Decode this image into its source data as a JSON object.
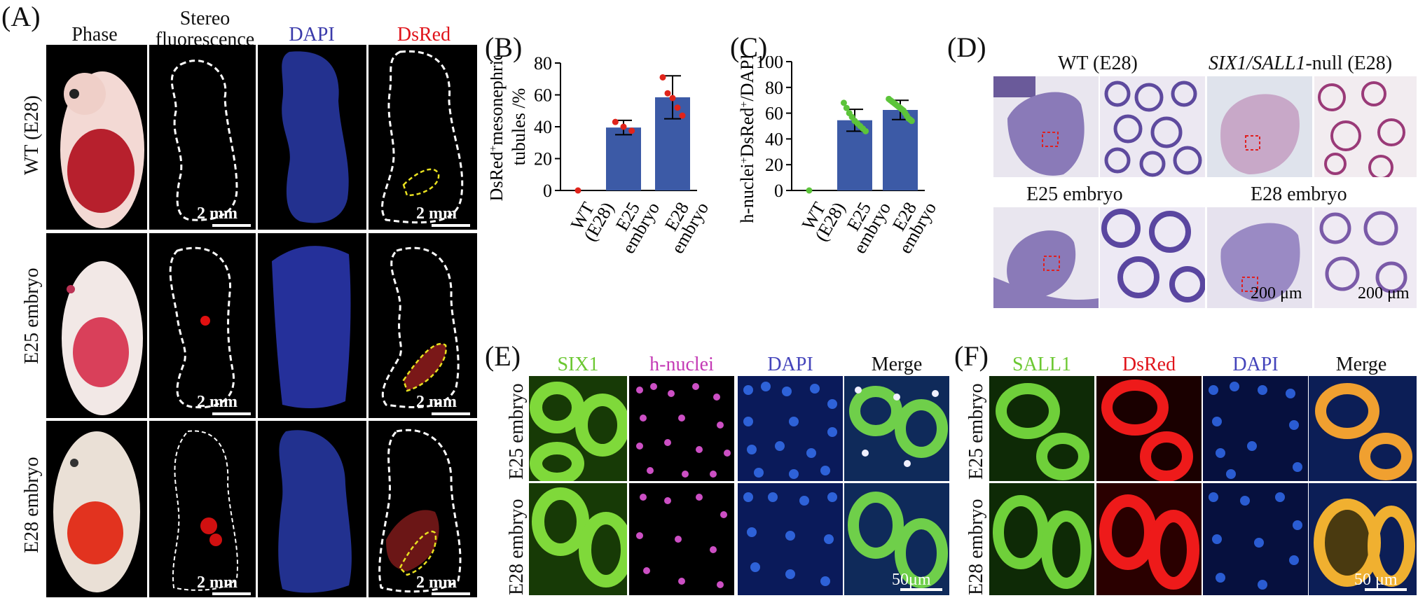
{
  "panel_labels": {
    "A": "(A)",
    "B": "(B)",
    "C": "(C)",
    "D": "(D)",
    "E": "(E)",
    "F": "(F)"
  },
  "panelA": {
    "columns": [
      "Phase",
      "Stereo\nfluorescence",
      "DAPI",
      "DsRed"
    ],
    "rows": [
      "WT (E28)",
      "E25 embryo",
      "E28 embryo"
    ],
    "scale": "2 mm",
    "colors": {
      "dapi": "#3a3aaa",
      "dsred": "#e0141b"
    }
  },
  "panelD": {
    "top_left_title": "WT (E28)",
    "top_right_title_italic": "SIX1/SALL1",
    "top_right_title_rest": "-null (E28)",
    "bottom_left_title": "E25 embryo",
    "bottom_right_title": "E28 embryo",
    "scale_left": "200 μm",
    "scale_right": "200 μm"
  },
  "panelE": {
    "columns": [
      "SIX1",
      "h-nuclei",
      "DAPI",
      "Merge"
    ],
    "col_colors": [
      "#6cc832",
      "#c43ab5",
      "#4444bb",
      "#111111"
    ],
    "rows": [
      "E25 embryo",
      "E28 embryo"
    ],
    "scale": "50μm"
  },
  "panelF": {
    "columns": [
      "SALL1",
      "DsRed",
      "DAPI",
      "Merge"
    ],
    "col_colors": [
      "#6cc832",
      "#e0141b",
      "#4444bb",
      "#111111"
    ],
    "rows": [
      "E25 embryo",
      "E28 embryo"
    ],
    "scale": "50 μm"
  },
  "chart_data": [
    {
      "type": "bar",
      "ylabel_parts": [
        "DsRed",
        "+",
        "mesonephric",
        "tubules /%"
      ],
      "categories": [
        "WT\n(E28)",
        "E25\nembryo",
        "E28\nembryo"
      ],
      "values": [
        0,
        39.5,
        58.5
      ],
      "errors": [
        0,
        4.5,
        13.5
      ],
      "points": [
        [
          0
        ],
        [
          43,
          40,
          37.5
        ],
        [
          71,
          61,
          58,
          52,
          47
        ]
      ],
      "yticks": [
        0,
        20,
        40,
        60,
        80
      ],
      "ylim": [
        0,
        80
      ],
      "bar_color": "#3c5aa6",
      "point_color": "#e0241b"
    },
    {
      "type": "bar",
      "ylabel_parts": [
        "h-nuclei",
        "+",
        "DsRed",
        "+",
        "/DAPI /%"
      ],
      "categories": [
        "WT\n(E28)",
        "E25\nembryo",
        "E28\nembryo"
      ],
      "values": [
        0,
        54.5,
        62.5
      ],
      "errors": [
        0,
        8.5,
        7.5
      ],
      "points": [
        [
          0
        ],
        [
          68,
          64,
          60,
          57,
          54,
          52,
          50,
          48,
          46
        ],
        [
          71,
          70,
          69,
          68,
          67,
          66,
          65,
          64,
          63,
          62,
          60,
          58,
          56,
          55,
          54
        ]
      ],
      "yticks": [
        0,
        20,
        40,
        60,
        80,
        100
      ],
      "ylim": [
        0,
        100
      ],
      "bar_color": "#3c5aa6",
      "point_color": "#5cc43a"
    }
  ]
}
